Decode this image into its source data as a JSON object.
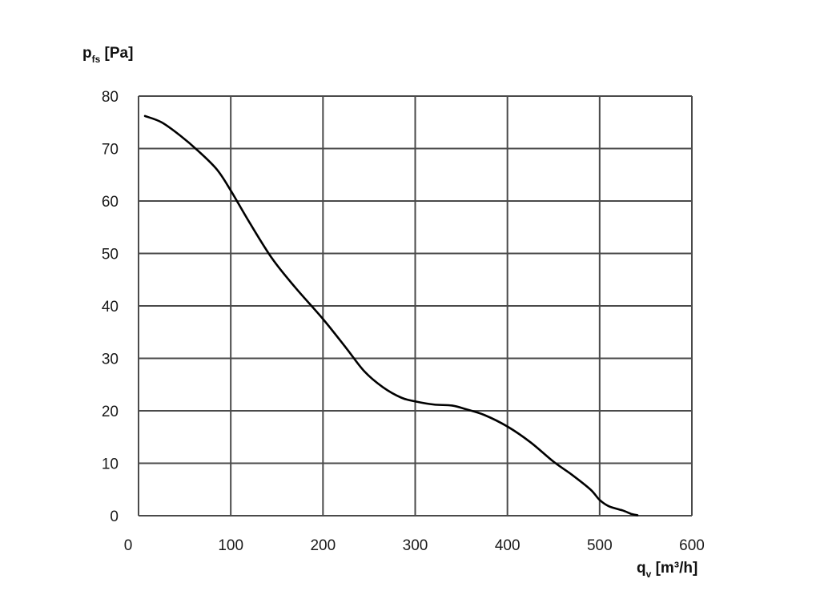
{
  "chart_data": {
    "type": "line",
    "title": "",
    "ylabel": {
      "main": "p",
      "sub": "fs",
      "unit": " [Pa]"
    },
    "xlabel": {
      "main": "q",
      "sub": "v",
      "unit": " [m³/h]"
    },
    "xlim": [
      0,
      600
    ],
    "ylim": [
      0,
      80
    ],
    "xticks": [
      0,
      100,
      200,
      300,
      400,
      500,
      600
    ],
    "yticks": [
      0,
      10,
      20,
      30,
      40,
      50,
      60,
      70,
      80
    ],
    "grid": true,
    "colors": {
      "line": "#000000",
      "grid": "#4a4a4a",
      "text": "#1a1a1a"
    },
    "series": [
      {
        "x": [
          7,
          25,
          45,
          65,
          85,
          100,
          120,
          145,
          170,
          200,
          225,
          245,
          265,
          285,
          300,
          320,
          340,
          355,
          375,
          400,
          425,
          450,
          470,
          490,
          500,
          510,
          525,
          535,
          541
        ],
        "y": [
          76.2,
          75,
          72.5,
          69.5,
          66,
          62,
          56,
          49,
          43.5,
          37.5,
          32,
          27.5,
          24.5,
          22.5,
          21.8,
          21.2,
          21,
          20.3,
          19.2,
          17,
          14,
          10.3,
          7.8,
          5,
          3,
          1.8,
          1,
          0.3,
          0.1
        ]
      }
    ]
  }
}
